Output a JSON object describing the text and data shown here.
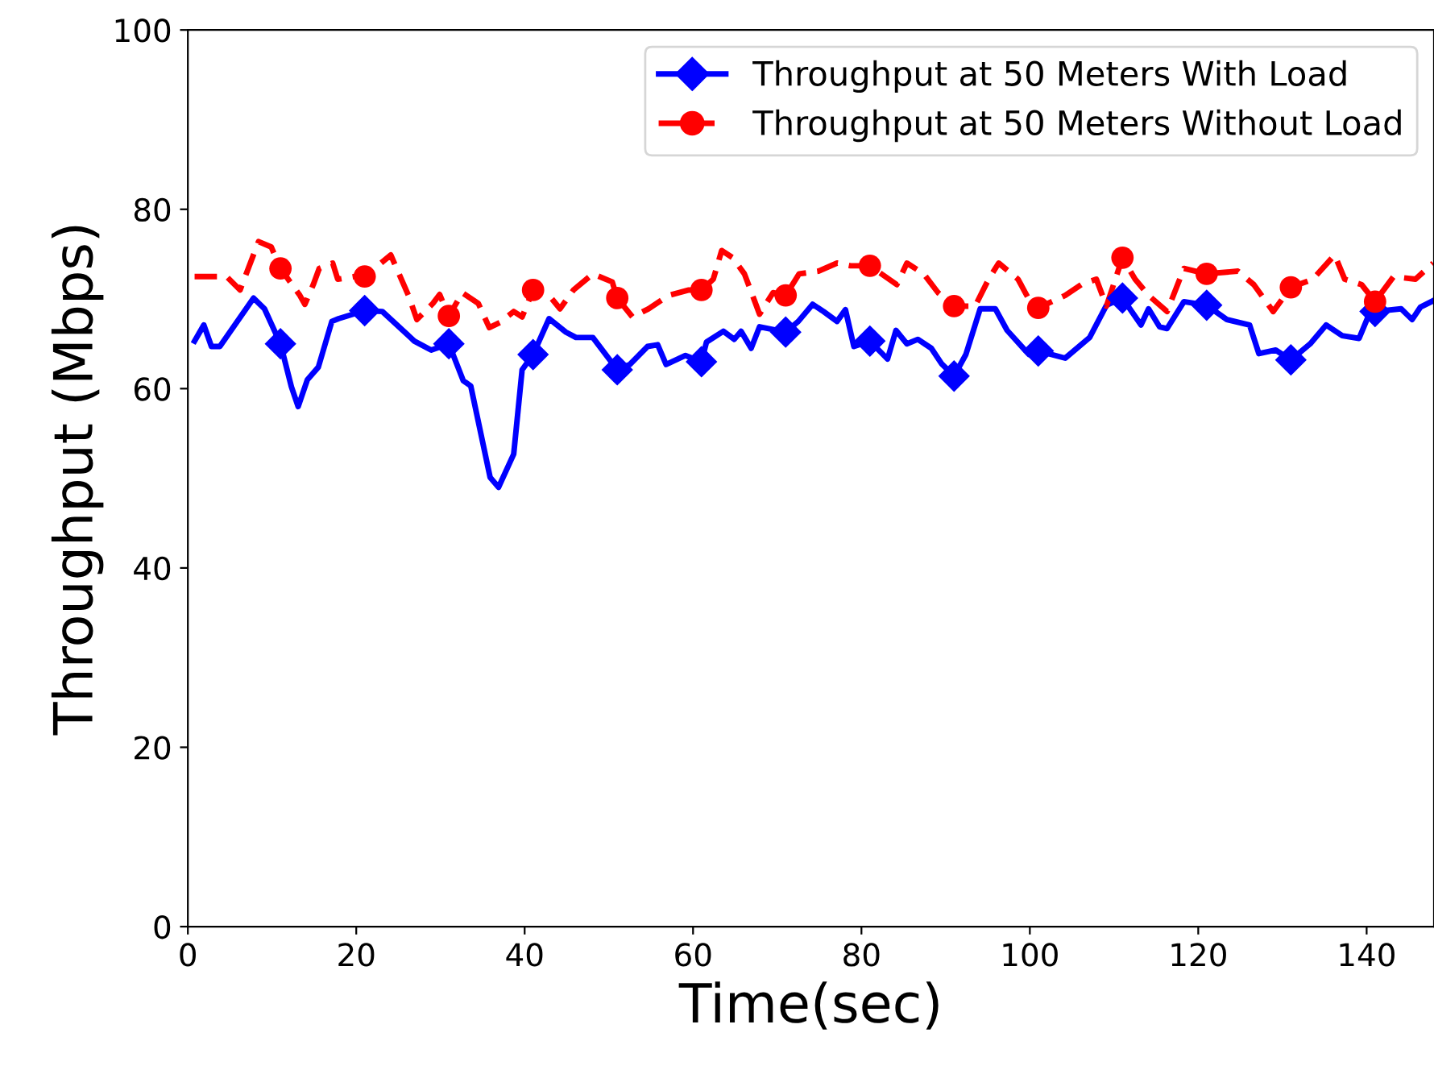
{
  "chart_data": {
    "type": "line",
    "xlabel": "Time(sec)",
    "ylabel": "Throughput (Mbps)",
    "xlim": [
      0,
      148
    ],
    "ylim": [
      0,
      100
    ],
    "xticks": [
      0,
      20,
      40,
      60,
      80,
      100,
      120,
      140
    ],
    "yticks": [
      0,
      20,
      40,
      60,
      80,
      100
    ],
    "grid": false,
    "legend": "top right",
    "series": [
      {
        "name": "Throughput at 50 Meters With Load",
        "color": "#0000ff",
        "line_style": "solid",
        "x": [
          0.8,
          1.9,
          2.8,
          3.8,
          7.8,
          9.1,
          11,
          12.3,
          13.1,
          14.2,
          15.5,
          17.1,
          17.9,
          21,
          23.1,
          26.9,
          28.9,
          31,
          32.7,
          33.6,
          35.9,
          36.9,
          38.7,
          39.7,
          41,
          42.9,
          44.9,
          46.1,
          48.1,
          51,
          52.5,
          54.6,
          55.8,
          56.8,
          59.1,
          61,
          61.6,
          63.6,
          64.9,
          65.7,
          66.9,
          67.9,
          71,
          72.5,
          74.2,
          75.5,
          77.1,
          78.1,
          79.1,
          81,
          83.1,
          84.1,
          85.4,
          86.7,
          88.3,
          89.5,
          91,
          92.4,
          94.1,
          95.9,
          97.3,
          99.9,
          101,
          104.2,
          107.1,
          109.1,
          111,
          113.2,
          114.1,
          115.4,
          116.3,
          118.3,
          121,
          123.4,
          126.1,
          127.2,
          129.2,
          131,
          133.3,
          135.2,
          137.1,
          139.1,
          140.3,
          141,
          144.1,
          145.4,
          146.4,
          147.9
        ],
        "values": [
          65.3,
          67.1,
          64.7,
          64.7,
          70.1,
          68.9,
          65.0,
          60.2,
          58.0,
          61.0,
          62.4,
          67.5,
          67.8,
          68.7,
          68.6,
          65.3,
          64.3,
          65.0,
          60.9,
          60.3,
          50.1,
          49.0,
          52.7,
          62.1,
          63.8,
          67.8,
          66.3,
          65.7,
          65.7,
          62.1,
          62.7,
          64.7,
          64.9,
          62.7,
          63.7,
          63.0,
          65.2,
          66.4,
          65.5,
          66.4,
          64.5,
          66.9,
          66.3,
          67.5,
          69.4,
          68.6,
          67.5,
          68.8,
          64.7,
          65.3,
          63.3,
          66.5,
          65.0,
          65.5,
          64.5,
          62.8,
          61.4,
          63.8,
          68.9,
          68.9,
          66.5,
          63.8,
          64.2,
          63.4,
          65.7,
          69.3,
          70.1,
          67.1,
          68.9,
          66.9,
          66.7,
          69.7,
          69.3,
          67.7,
          67.1,
          63.9,
          64.3,
          63.2,
          65.0,
          67.1,
          65.9,
          65.6,
          68.3,
          68.6,
          68.9,
          67.7,
          69.1,
          69.8
        ]
      },
      {
        "type": "scatter",
        "color": "#0000ff",
        "marker": "diamond",
        "x": [
          11,
          21,
          31,
          41,
          51,
          61,
          71,
          81,
          91,
          101,
          111,
          121,
          131,
          141
        ],
        "values": [
          65.0,
          68.7,
          65.0,
          63.8,
          62.1,
          63.0,
          66.3,
          65.3,
          61.4,
          64.2,
          70.1,
          69.3,
          63.2,
          68.6
        ]
      },
      {
        "name": "Throughput at 50 Meters Without Load",
        "color": "#ff0000",
        "line_style": "dashed",
        "x": [
          0.8,
          3.1,
          4.6,
          6.2,
          8.4,
          9.9,
          11,
          13.3,
          13.9,
          14.9,
          15.6,
          17.2,
          17.8,
          19.8,
          21,
          24.1,
          26.2,
          27.2,
          29.1,
          29.9,
          31,
          32.6,
          34.5,
          35.8,
          37.1,
          38.7,
          39.7,
          41,
          42.9,
          44.2,
          45.8,
          48.1,
          50.4,
          51,
          52.8,
          54.7,
          57.1,
          59.5,
          61,
          62.4,
          63.4,
          64.7,
          66.1,
          67.9,
          69.5,
          71,
          72.6,
          74.9,
          77.1,
          78.7,
          81,
          84.2,
          85.4,
          87.4,
          89.1,
          91,
          93.5,
          95.1,
          96.3,
          98.6,
          100.5,
          101,
          104.2,
          106.1,
          107.9,
          109.1,
          111,
          112.5,
          114.1,
          116.3,
          118.3,
          121,
          124.7,
          126.6,
          128.9,
          131,
          133.6,
          136.2,
          137.4,
          139.4,
          141,
          143.2,
          145.8,
          147.9
        ],
        "values": [
          72.5,
          72.5,
          72.5,
          71.0,
          76.4,
          75.8,
          73.4,
          70.4,
          69.4,
          71.6,
          73.4,
          74.0,
          72.2,
          72.5,
          72.5,
          74.9,
          70.4,
          67.7,
          69.5,
          70.5,
          68.1,
          70.7,
          69.5,
          66.8,
          67.4,
          68.6,
          68.0,
          71.0,
          70.4,
          68.9,
          71.0,
          72.8,
          71.9,
          70.1,
          68.0,
          68.9,
          70.4,
          71.0,
          71.0,
          72.2,
          75.4,
          74.6,
          72.8,
          68.3,
          70.7,
          70.4,
          72.8,
          73.1,
          74.0,
          73.7,
          73.7,
          71.6,
          74.0,
          72.8,
          70.7,
          69.2,
          69.2,
          72.2,
          74.0,
          72.2,
          68.9,
          69.0,
          70.4,
          71.6,
          72.2,
          69.2,
          74.6,
          72.2,
          70.4,
          68.6,
          73.4,
          72.8,
          73.1,
          71.6,
          68.6,
          71.3,
          72.2,
          74.9,
          72.2,
          71.6,
          69.7,
          72.5,
          72.2,
          74.0
        ]
      },
      {
        "type": "scatter",
        "color": "#ff0000",
        "marker": "circle",
        "x": [
          11,
          21,
          31,
          41,
          51,
          61,
          71,
          81,
          91,
          101,
          111,
          121,
          131,
          141
        ],
        "values": [
          73.4,
          72.5,
          68.1,
          71.0,
          70.1,
          71.0,
          70.4,
          73.7,
          69.2,
          69.0,
          74.6,
          72.8,
          71.3,
          69.7
        ]
      }
    ]
  }
}
